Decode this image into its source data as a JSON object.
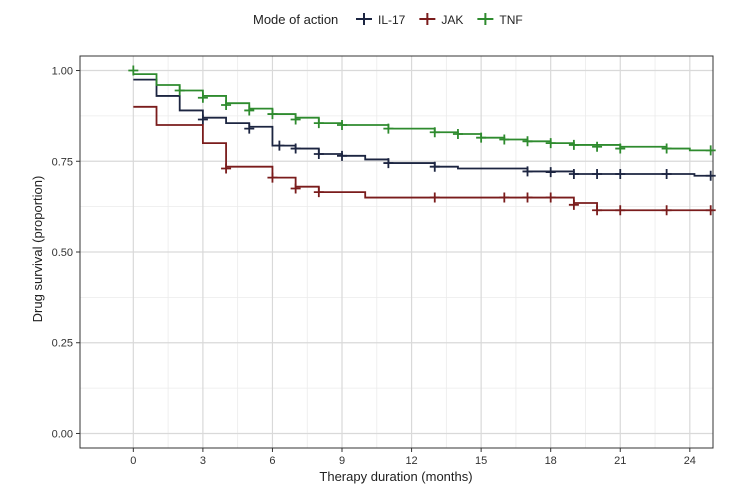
{
  "chart_data": {
    "type": "line",
    "step": true,
    "xlabel": "Therapy duration (months)",
    "ylabel": "Drug survival (proportion)",
    "xlim": [
      -2.3,
      25
    ],
    "ylim": [
      -0.04,
      1.04
    ],
    "xticks": [
      0,
      3,
      6,
      9,
      12,
      15,
      18,
      21,
      24
    ],
    "yticks": [
      0.0,
      0.25,
      0.5,
      0.75,
      1.0
    ],
    "ytick_labels": [
      "0.00",
      "0.25",
      "0.50",
      "0.75",
      "1.00"
    ],
    "grid": true,
    "legend": {
      "title": "Mode of action",
      "position": "top"
    },
    "series": [
      {
        "name": "IL-17",
        "color": "#1c2541",
        "steps": [
          [
            0,
            0.975
          ],
          [
            1,
            0.93
          ],
          [
            2,
            0.89
          ],
          [
            3,
            0.87
          ],
          [
            4,
            0.855
          ],
          [
            5,
            0.845
          ],
          [
            6,
            0.793
          ],
          [
            7,
            0.785
          ],
          [
            8,
            0.77
          ],
          [
            9,
            0.765
          ],
          [
            10,
            0.755
          ],
          [
            11,
            0.745
          ],
          [
            13,
            0.735
          ],
          [
            14,
            0.73
          ],
          [
            17,
            0.722
          ],
          [
            19,
            0.715
          ],
          [
            24.2,
            0.71
          ],
          [
            25,
            0.71
          ]
        ],
        "censored": [
          [
            3,
            0.865
          ],
          [
            5,
            0.84
          ],
          [
            6.3,
            0.793
          ],
          [
            7,
            0.785
          ],
          [
            8,
            0.77
          ],
          [
            9,
            0.765
          ],
          [
            11,
            0.745
          ],
          [
            13,
            0.735
          ],
          [
            17,
            0.722
          ],
          [
            18,
            0.72
          ],
          [
            19,
            0.715
          ],
          [
            20,
            0.715
          ],
          [
            21,
            0.715
          ],
          [
            23,
            0.715
          ],
          [
            24.9,
            0.71
          ]
        ]
      },
      {
        "name": "JAK",
        "color": "#7a1c1c",
        "steps": [
          [
            0,
            0.9
          ],
          [
            1,
            0.85
          ],
          [
            3,
            0.8
          ],
          [
            4,
            0.735
          ],
          [
            6,
            0.705
          ],
          [
            7,
            0.68
          ],
          [
            8,
            0.665
          ],
          [
            10,
            0.65
          ],
          [
            19,
            0.635
          ],
          [
            20,
            0.615
          ],
          [
            25,
            0.615
          ]
        ],
        "censored": [
          [
            4,
            0.73
          ],
          [
            6,
            0.705
          ],
          [
            7,
            0.675
          ],
          [
            8,
            0.665
          ],
          [
            13,
            0.65
          ],
          [
            16,
            0.65
          ],
          [
            17,
            0.65
          ],
          [
            18,
            0.65
          ],
          [
            19,
            0.63
          ],
          [
            20,
            0.615
          ],
          [
            21,
            0.615
          ],
          [
            23,
            0.615
          ],
          [
            24.9,
            0.615
          ]
        ]
      },
      {
        "name": "TNF",
        "color": "#2e8b2e",
        "steps": [
          [
            0,
            0.99
          ],
          [
            1,
            0.96
          ],
          [
            2,
            0.945
          ],
          [
            3,
            0.93
          ],
          [
            4,
            0.91
          ],
          [
            5,
            0.895
          ],
          [
            6,
            0.88
          ],
          [
            7,
            0.87
          ],
          [
            8,
            0.855
          ],
          [
            9,
            0.85
          ],
          [
            11,
            0.84
          ],
          [
            13,
            0.83
          ],
          [
            14,
            0.825
          ],
          [
            15,
            0.815
          ],
          [
            16,
            0.81
          ],
          [
            17,
            0.805
          ],
          [
            18,
            0.8
          ],
          [
            19,
            0.795
          ],
          [
            21,
            0.79
          ],
          [
            23,
            0.785
          ],
          [
            24,
            0.78
          ],
          [
            25,
            0.78
          ]
        ],
        "censored": [
          [
            0,
            1.0
          ],
          [
            2,
            0.945
          ],
          [
            3,
            0.925
          ],
          [
            4,
            0.905
          ],
          [
            5,
            0.89
          ],
          [
            6,
            0.88
          ],
          [
            7,
            0.865
          ],
          [
            8,
            0.855
          ],
          [
            9,
            0.85
          ],
          [
            11,
            0.84
          ],
          [
            13,
            0.83
          ],
          [
            14,
            0.825
          ],
          [
            15,
            0.815
          ],
          [
            16,
            0.81
          ],
          [
            17,
            0.805
          ],
          [
            18,
            0.8
          ],
          [
            19,
            0.795
          ],
          [
            20,
            0.79
          ],
          [
            21,
            0.785
          ],
          [
            23,
            0.785
          ],
          [
            24.9,
            0.78
          ]
        ]
      }
    ]
  }
}
